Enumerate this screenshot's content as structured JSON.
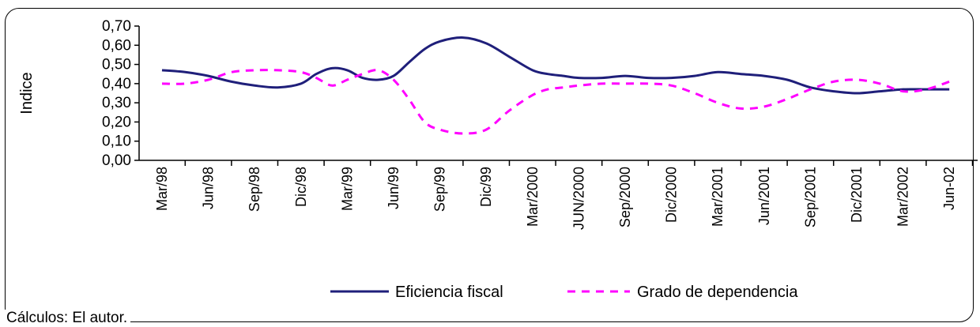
{
  "chart_data": {
    "type": "line",
    "title": "",
    "xlabel": "",
    "ylabel": "Indice",
    "ylim": [
      0,
      0.7
    ],
    "y_ticks": [
      "0,00",
      "0,10",
      "0,20",
      "0,30",
      "0,40",
      "0,50",
      "0,60",
      "0,70"
    ],
    "categories": [
      "Mar/98",
      "Jun/98",
      "Sep/98",
      "Dic/98",
      "Mar/99",
      "Jun/99",
      "Sep/99",
      "Dic/99",
      "Mar/2000",
      "JUN/2000",
      "Sep/2000",
      "Dic/2000",
      "Mar/2001",
      "Jun/2001",
      "Sep/2001",
      "Dic/2001",
      "Mar/2002",
      "Jun-02"
    ],
    "x": [
      0,
      0.5,
      1,
      1.5,
      2,
      2.5,
      3,
      3.33,
      3.67,
      4,
      4.33,
      4.67,
      5,
      5.33,
      5.67,
      6,
      6.5,
      7,
      7.5,
      8,
      8.33,
      8.67,
      9,
      9.5,
      10,
      10.5,
      11,
      11.5,
      12,
      12.5,
      13,
      13.5,
      14,
      14.5,
      15,
      15.5,
      16,
      16.5,
      17
    ],
    "series": [
      {
        "name": "Eficiencia fiscal",
        "color": "#1f1f7a",
        "style": "solid",
        "values": [
          0.47,
          0.46,
          0.44,
          0.41,
          0.39,
          0.38,
          0.4,
          0.45,
          0.48,
          0.47,
          0.43,
          0.42,
          0.44,
          0.51,
          0.58,
          0.62,
          0.64,
          0.61,
          0.54,
          0.47,
          0.45,
          0.44,
          0.43,
          0.43,
          0.44,
          0.43,
          0.43,
          0.44,
          0.46,
          0.45,
          0.44,
          0.42,
          0.38,
          0.36,
          0.35,
          0.36,
          0.37,
          0.37,
          0.37
        ]
      },
      {
        "name": "Grado de dependencia",
        "color": "#ff00ff",
        "style": "dashed",
        "values": [
          0.4,
          0.4,
          0.42,
          0.46,
          0.47,
          0.47,
          0.46,
          0.43,
          0.39,
          0.42,
          0.45,
          0.47,
          0.42,
          0.32,
          0.2,
          0.16,
          0.14,
          0.16,
          0.26,
          0.34,
          0.37,
          0.38,
          0.39,
          0.4,
          0.4,
          0.4,
          0.39,
          0.35,
          0.3,
          0.27,
          0.28,
          0.32,
          0.37,
          0.41,
          0.42,
          0.4,
          0.36,
          0.37,
          0.41
        ]
      }
    ],
    "legend_position": "bottom",
    "grid": false
  },
  "footer": {
    "source": "Cálculos: El autor."
  }
}
